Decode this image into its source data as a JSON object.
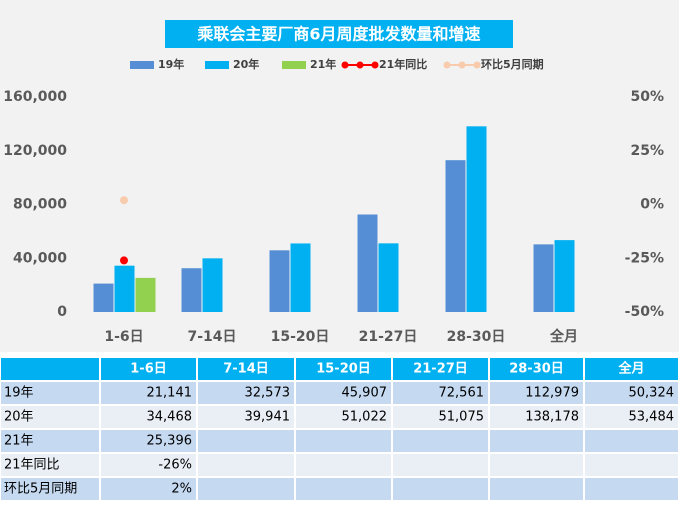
{
  "chart_data": {
    "type": "bar",
    "title": "乘联会主要厂商6月周度批发数量和增速",
    "categories": [
      "1-6日",
      "7-14日",
      "15-20日",
      "21-27日",
      "28-30日",
      "全月"
    ],
    "series": [
      {
        "name": "19年",
        "color": "#558ed5",
        "values": [
          21141,
          32573,
          45907,
          72561,
          112979,
          50324
        ],
        "value_labels": [
          "21,141",
          "32,573",
          "45,907",
          "72,561",
          "112,979",
          "50,324"
        ]
      },
      {
        "name": "20年",
        "color": "#00b0f0",
        "values": [
          34468,
          39941,
          51022,
          51075,
          138178,
          53484
        ],
        "value_labels": [
          "34,468",
          "39,941",
          "51,022",
          "51,075",
          "138,178",
          "53,484"
        ]
      },
      {
        "name": "21年",
        "color": "#92d050",
        "values": [
          25396,
          null,
          null,
          null,
          null,
          null
        ],
        "value_labels": [
          "25,396",
          null,
          null,
          null,
          null,
          null
        ]
      },
      {
        "name": "21年同比",
        "color": "#ff0000",
        "type": "line",
        "axis": "y2",
        "values": [
          -26,
          null,
          null,
          null,
          null,
          null
        ],
        "value_labels": [
          "-26%",
          null,
          null,
          null,
          null,
          null
        ]
      },
      {
        "name": "环比5月同期",
        "color": "#f8cbad",
        "type": "line",
        "axis": "y2",
        "values": [
          2,
          null,
          null,
          null,
          null,
          null
        ],
        "value_labels": [
          "2%",
          null,
          null,
          null,
          null,
          null
        ]
      }
    ],
    "ylim": [
      0,
      160000
    ],
    "yticks": [
      0,
      {
        "value": 40000,
        "label": "40,000"
      },
      {
        "value": 80000,
        "label": "80,000"
      },
      {
        "value": 120000,
        "label": "120,000"
      },
      {
        "value": 160000,
        "label": "160,000"
      }
    ],
    "y2lim": [
      -50,
      50
    ],
    "y2ticks": [
      {
        "value": -50,
        "label": "-50%"
      },
      {
        "value": -25,
        "label": "-25%"
      },
      {
        "value": 0,
        "label": "0%"
      },
      {
        "value": 25,
        "label": "25%"
      },
      {
        "value": 50,
        "label": "50%"
      }
    ],
    "legend": "top"
  }
}
